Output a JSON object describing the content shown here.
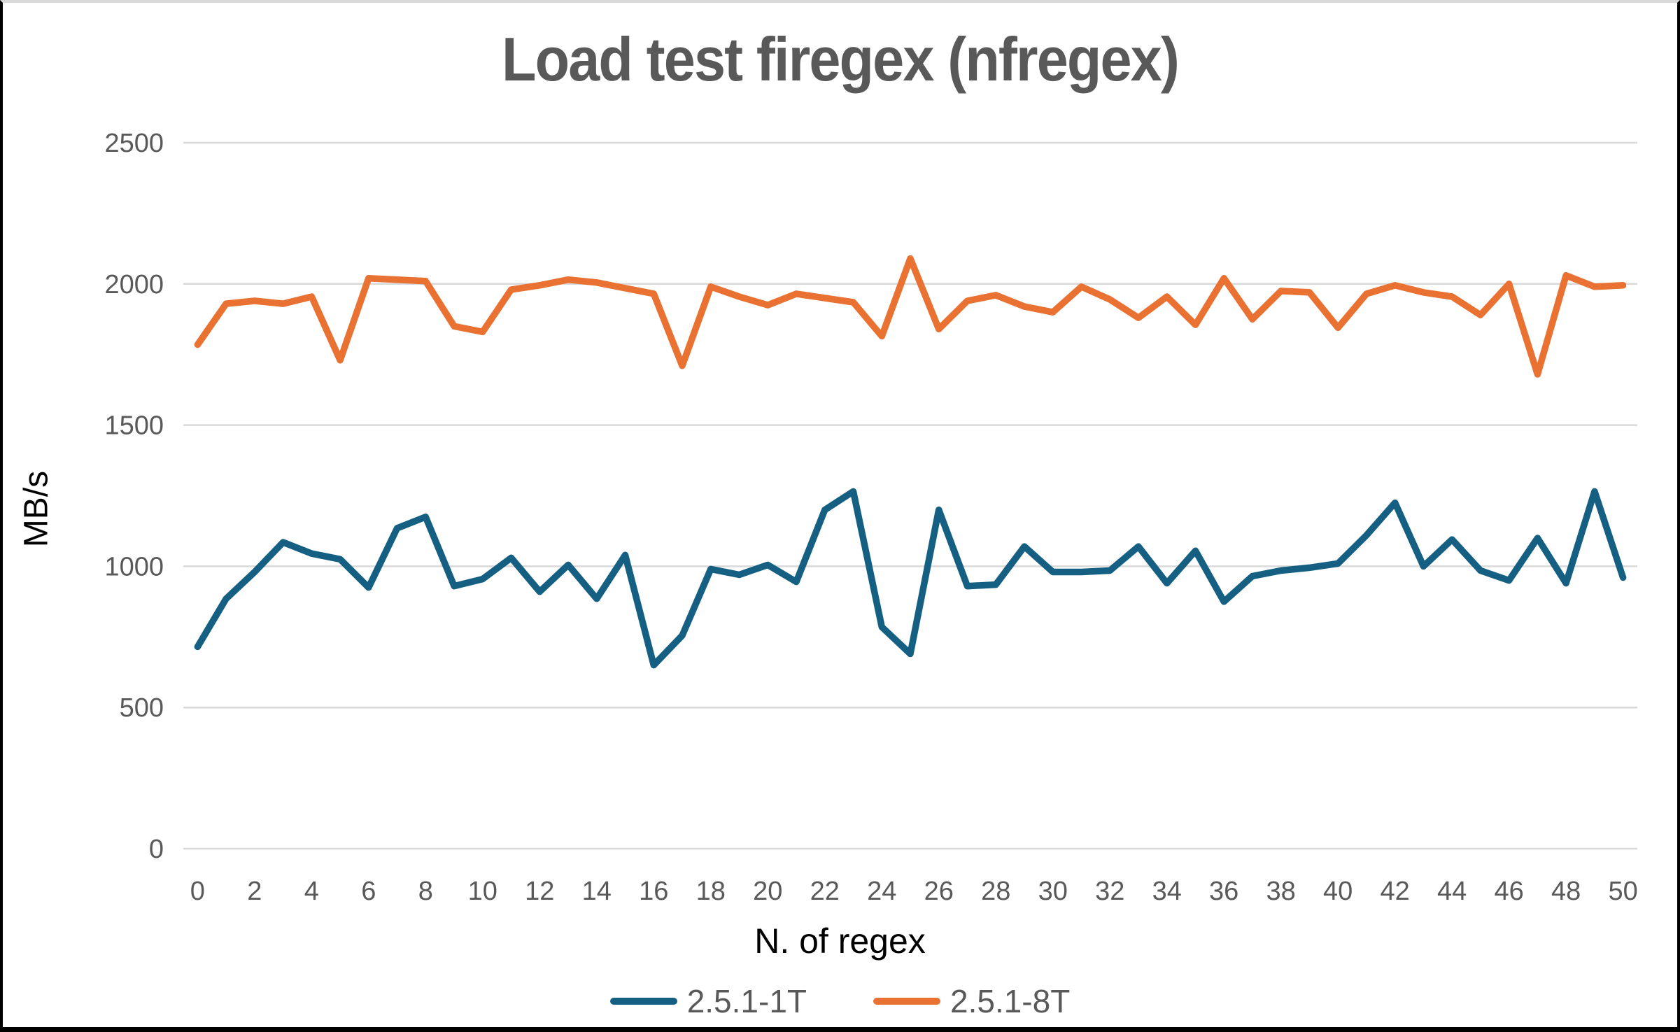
{
  "title": "Load test firegex (nfregex)",
  "axes": {
    "y_title": "MB/s",
    "x_title": "N. of regex",
    "y_ticks": [
      0,
      500,
      1000,
      1500,
      2000,
      2500
    ],
    "x_ticks": [
      0,
      2,
      4,
      6,
      8,
      10,
      12,
      14,
      16,
      18,
      20,
      22,
      24,
      26,
      28,
      30,
      32,
      34,
      36,
      38,
      40,
      42,
      44,
      46,
      48,
      50
    ]
  },
  "legend": [
    {
      "label": "2.5.1-1T",
      "color": "#156082"
    },
    {
      "label": "2.5.1-8T",
      "color": "#E97132"
    }
  ],
  "colors": {
    "grid": "#D9D9D9",
    "tick_label": "#595959",
    "title_text": "#595959",
    "series_1T": "#156082",
    "series_8T": "#E97132"
  },
  "chart_data": {
    "type": "line",
    "title": "Load test firegex (nfregex)",
    "xlabel": "N. of regex",
    "ylabel": "MB/s",
    "xlim": [
      0,
      50
    ],
    "ylim": [
      0,
      2500
    ],
    "grid": true,
    "legend_position": "bottom",
    "x": [
      0,
      1,
      2,
      3,
      4,
      5,
      6,
      7,
      8,
      9,
      10,
      11,
      12,
      13,
      14,
      15,
      16,
      17,
      18,
      19,
      20,
      21,
      22,
      23,
      24,
      25,
      26,
      27,
      28,
      29,
      30,
      31,
      32,
      33,
      34,
      35,
      36,
      37,
      38,
      39,
      40,
      41,
      42,
      43,
      44,
      45,
      46,
      47,
      48,
      49,
      50
    ],
    "series": [
      {
        "name": "2.5.1-1T",
        "color": "#156082",
        "values": [
          715,
          885,
          980,
          1085,
          1045,
          1025,
          925,
          1135,
          1175,
          930,
          955,
          1030,
          910,
          1005,
          885,
          1040,
          650,
          755,
          990,
          970,
          1005,
          945,
          1200,
          1265,
          785,
          690,
          1200,
          930,
          935,
          1070,
          980,
          980,
          985,
          1070,
          940,
          1055,
          875,
          965,
          985,
          995,
          1010,
          1110,
          1225,
          1000,
          1095,
          985,
          950,
          1100,
          940,
          1265,
          960
        ]
      },
      {
        "name": "2.5.1-8T",
        "color": "#E97132",
        "values": [
          1785,
          1930,
          1940,
          1930,
          1955,
          1730,
          2020,
          2015,
          2010,
          1850,
          1830,
          1980,
          1995,
          2015,
          2005,
          1985,
          1965,
          1710,
          1990,
          1955,
          1925,
          1965,
          1950,
          1935,
          1815,
          2090,
          1840,
          1940,
          1960,
          1920,
          1900,
          1990,
          1945,
          1880,
          1955,
          1855,
          2020,
          1875,
          1975,
          1970,
          1845,
          1965,
          1995,
          1970,
          1955,
          1890,
          2000,
          1680,
          2030,
          1990,
          1995
        ]
      }
    ]
  }
}
